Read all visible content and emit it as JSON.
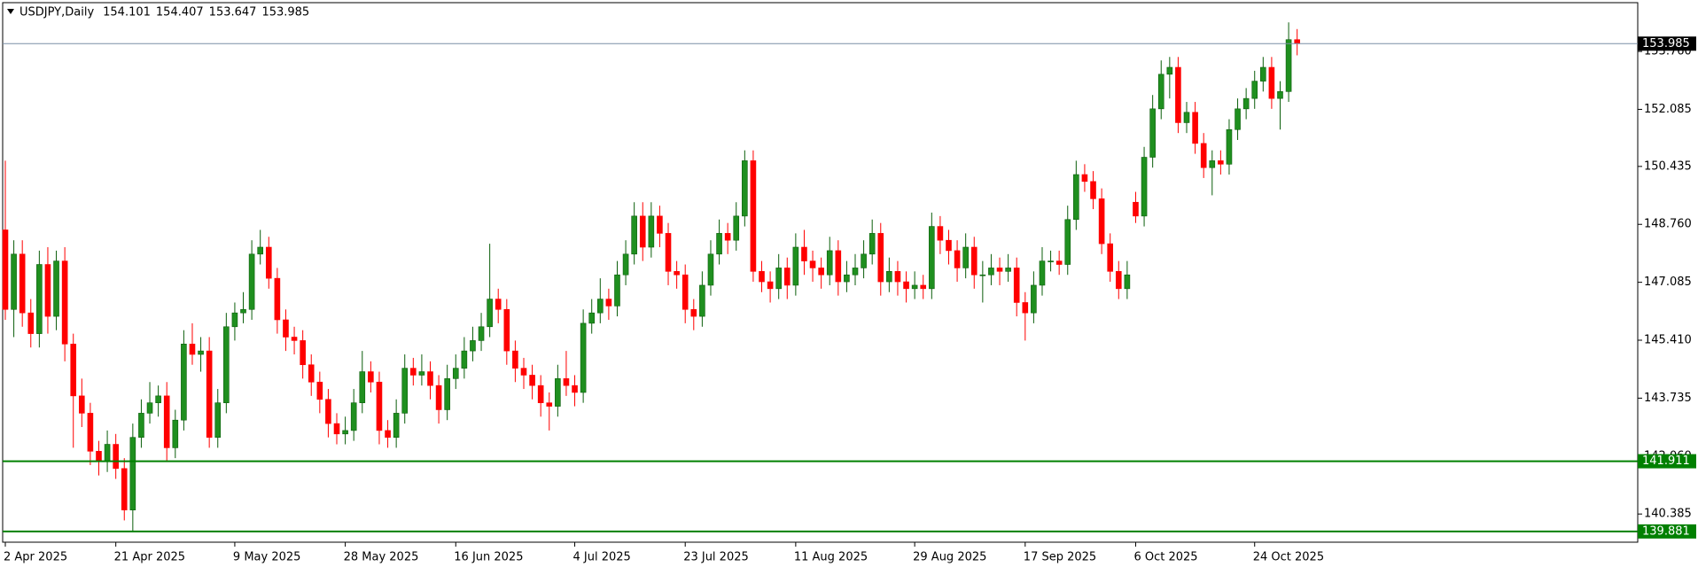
{
  "chart_data": {
    "type": "candlestick",
    "title": "USDJPY,Daily",
    "categories": [
      "2 Apr 2025",
      null,
      null,
      null,
      null,
      null,
      null,
      null,
      null,
      null,
      null,
      null,
      null,
      "21 Apr 2025",
      null,
      null,
      null,
      null,
      null,
      null,
      null,
      null,
      null,
      null,
      null,
      null,
      null,
      "9 May 2025",
      null,
      null,
      null,
      null,
      null,
      null,
      null,
      null,
      null,
      null,
      null,
      null,
      "28 May 2025",
      null,
      null,
      null,
      null,
      null,
      null,
      null,
      null,
      null,
      null,
      null,
      null,
      "16 Jun 2025",
      null,
      null,
      null,
      null,
      null,
      null,
      null,
      null,
      null,
      null,
      null,
      null,
      null,
      "4 Jul 2025",
      null,
      null,
      null,
      null,
      null,
      null,
      null,
      null,
      null,
      null,
      null,
      null,
      "23 Jul 2025",
      null,
      null,
      null,
      null,
      null,
      null,
      null,
      null,
      null,
      null,
      null,
      null,
      "11 Aug 2025",
      null,
      null,
      null,
      null,
      null,
      null,
      null,
      null,
      null,
      null,
      null,
      null,
      null,
      "29 Aug 2025",
      null,
      null,
      null,
      null,
      null,
      null,
      null,
      null,
      null,
      null,
      null,
      null,
      "17 Sep 2025",
      null,
      null,
      null,
      null,
      null,
      null,
      null,
      null,
      null,
      null,
      null,
      null,
      "6 Oct 2025",
      null,
      null,
      null,
      null,
      null,
      null,
      null,
      null,
      null,
      null,
      null,
      null,
      null,
      "24 Oct 2025",
      null,
      null,
      null,
      null,
      null
    ],
    "candles": [
      [
        148.6,
        150.6,
        146.0,
        146.3
      ],
      [
        146.3,
        148.3,
        145.5,
        147.9
      ],
      [
        147.9,
        148.3,
        145.8,
        146.2
      ],
      [
        146.2,
        146.6,
        145.2,
        145.6
      ],
      [
        145.6,
        148.0,
        145.2,
        147.6
      ],
      [
        147.6,
        148.1,
        145.6,
        146.1
      ],
      [
        146.1,
        148.0,
        145.7,
        147.7
      ],
      [
        147.7,
        148.1,
        144.8,
        145.3
      ],
      [
        145.3,
        145.6,
        142.3,
        143.8
      ],
      [
        143.8,
        144.3,
        142.9,
        143.3
      ],
      [
        143.3,
        143.6,
        141.8,
        142.2
      ],
      [
        142.2,
        142.5,
        141.5,
        141.9
      ],
      [
        141.9,
        142.8,
        141.6,
        142.4
      ],
      [
        142.4,
        142.7,
        141.4,
        141.7
      ],
      [
        141.7,
        142.0,
        140.2,
        140.5
      ],
      [
        140.5,
        143.0,
        139.9,
        142.6
      ],
      [
        142.6,
        143.7,
        142.3,
        143.3
      ],
      [
        143.3,
        144.2,
        143.0,
        143.6
      ],
      [
        143.6,
        144.1,
        143.2,
        143.8
      ],
      [
        143.8,
        144.2,
        141.9,
        142.3
      ],
      [
        142.3,
        143.4,
        142.0,
        143.1
      ],
      [
        143.1,
        145.7,
        142.8,
        145.3
      ],
      [
        145.3,
        145.9,
        144.7,
        145.0
      ],
      [
        145.0,
        145.5,
        144.5,
        145.1
      ],
      [
        145.1,
        145.5,
        142.3,
        142.6
      ],
      [
        142.6,
        144.0,
        142.3,
        143.6
      ],
      [
        143.6,
        146.2,
        143.3,
        145.8
      ],
      [
        145.8,
        146.5,
        145.4,
        146.2
      ],
      [
        146.2,
        146.8,
        145.9,
        146.3
      ],
      [
        146.3,
        148.3,
        146.0,
        147.9
      ],
      [
        147.9,
        148.6,
        147.6,
        148.1
      ],
      [
        148.1,
        148.4,
        146.9,
        147.2
      ],
      [
        147.2,
        147.5,
        145.6,
        146.0
      ],
      [
        146.0,
        146.3,
        145.1,
        145.5
      ],
      [
        145.5,
        145.8,
        145.0,
        145.4
      ],
      [
        145.4,
        145.7,
        144.3,
        144.7
      ],
      [
        144.7,
        145.0,
        143.8,
        144.2
      ],
      [
        144.2,
        144.5,
        143.3,
        143.7
      ],
      [
        143.7,
        144.0,
        142.6,
        143.0
      ],
      [
        143.0,
        143.3,
        142.4,
        142.7
      ],
      [
        142.7,
        143.2,
        142.4,
        142.8
      ],
      [
        142.8,
        144.0,
        142.5,
        143.6
      ],
      [
        143.6,
        145.1,
        143.3,
        144.5
      ],
      [
        144.5,
        144.8,
        143.9,
        144.2
      ],
      [
        144.2,
        144.5,
        142.4,
        142.8
      ],
      [
        142.8,
        143.1,
        142.3,
        142.6
      ],
      [
        142.6,
        143.7,
        142.3,
        143.3
      ],
      [
        143.3,
        145.0,
        143.0,
        144.6
      ],
      [
        144.6,
        144.9,
        144.1,
        144.4
      ],
      [
        144.4,
        145.0,
        144.1,
        144.5
      ],
      [
        144.5,
        144.8,
        143.7,
        144.1
      ],
      [
        144.1,
        144.4,
        143.0,
        143.4
      ],
      [
        143.4,
        144.7,
        143.1,
        144.3
      ],
      [
        144.3,
        145.0,
        144.0,
        144.6
      ],
      [
        144.6,
        145.5,
        144.3,
        145.1
      ],
      [
        145.1,
        145.8,
        144.8,
        145.4
      ],
      [
        145.4,
        146.2,
        145.1,
        145.8
      ],
      [
        145.8,
        148.2,
        145.5,
        146.6
      ],
      [
        146.6,
        146.9,
        145.9,
        146.3
      ],
      [
        146.3,
        146.6,
        144.7,
        145.1
      ],
      [
        145.1,
        145.4,
        144.2,
        144.6
      ],
      [
        144.6,
        144.9,
        144.0,
        144.4
      ],
      [
        144.4,
        144.7,
        143.7,
        144.1
      ],
      [
        144.1,
        144.4,
        143.2,
        143.6
      ],
      [
        143.6,
        143.9,
        142.8,
        143.5
      ],
      [
        143.5,
        144.7,
        143.2,
        144.3
      ],
      [
        144.3,
        145.1,
        143.8,
        144.1
      ],
      [
        144.1,
        144.4,
        143.5,
        143.9
      ],
      [
        143.9,
        146.3,
        143.6,
        145.9
      ],
      [
        145.9,
        146.6,
        145.6,
        146.2
      ],
      [
        146.2,
        147.2,
        145.9,
        146.6
      ],
      [
        146.6,
        146.9,
        146.0,
        146.4
      ],
      [
        146.4,
        147.7,
        146.1,
        147.3
      ],
      [
        147.3,
        148.3,
        147.0,
        147.9
      ],
      [
        147.9,
        149.4,
        147.6,
        149.0
      ],
      [
        149.0,
        149.4,
        147.7,
        148.1
      ],
      [
        148.1,
        149.4,
        147.8,
        149.0
      ],
      [
        149.0,
        149.3,
        148.1,
        148.5
      ],
      [
        148.5,
        148.8,
        147.0,
        147.4
      ],
      [
        147.4,
        147.7,
        146.9,
        147.3
      ],
      [
        147.3,
        147.6,
        145.9,
        146.3
      ],
      [
        146.3,
        146.6,
        145.7,
        146.1
      ],
      [
        146.1,
        147.4,
        145.8,
        147.0
      ],
      [
        147.0,
        148.3,
        146.7,
        147.9
      ],
      [
        147.9,
        148.9,
        147.6,
        148.5
      ],
      [
        148.5,
        148.8,
        147.9,
        148.3
      ],
      [
        148.3,
        149.4,
        148.0,
        149.0
      ],
      [
        149.0,
        150.9,
        148.7,
        150.6
      ],
      [
        150.6,
        150.9,
        147.1,
        147.4
      ],
      [
        147.4,
        147.7,
        146.8,
        147.1
      ],
      [
        147.1,
        147.4,
        146.5,
        146.9
      ],
      [
        146.9,
        147.9,
        146.6,
        147.5
      ],
      [
        147.5,
        147.8,
        146.6,
        147.0
      ],
      [
        147.0,
        148.5,
        146.7,
        148.1
      ],
      [
        148.1,
        148.6,
        147.3,
        147.7
      ],
      [
        147.7,
        148.0,
        147.1,
        147.5
      ],
      [
        147.5,
        147.8,
        146.9,
        147.3
      ],
      [
        147.3,
        148.4,
        147.0,
        148.0
      ],
      [
        148.0,
        148.3,
        146.7,
        147.1
      ],
      [
        147.1,
        147.7,
        146.8,
        147.3
      ],
      [
        147.3,
        147.9,
        147.0,
        147.5
      ],
      [
        147.5,
        148.3,
        147.2,
        147.9
      ],
      [
        147.9,
        148.9,
        147.6,
        148.5
      ],
      [
        148.5,
        148.8,
        146.7,
        147.1
      ],
      [
        147.1,
        147.8,
        146.8,
        147.4
      ],
      [
        147.4,
        147.7,
        146.7,
        147.1
      ],
      [
        147.1,
        147.4,
        146.5,
        146.9
      ],
      [
        146.9,
        147.4,
        146.6,
        147.0
      ],
      [
        147.0,
        147.3,
        146.6,
        146.9
      ],
      [
        146.9,
        149.1,
        146.6,
        148.7
      ],
      [
        148.7,
        149.0,
        147.9,
        148.3
      ],
      [
        148.3,
        148.6,
        147.6,
        148.0
      ],
      [
        148.0,
        148.3,
        147.1,
        147.5
      ],
      [
        147.5,
        148.5,
        147.2,
        148.1
      ],
      [
        148.1,
        148.4,
        146.9,
        147.3
      ],
      [
        147.3,
        147.7,
        146.5,
        147.3
      ],
      [
        147.3,
        147.9,
        147.0,
        147.5
      ],
      [
        147.5,
        147.8,
        147.0,
        147.4
      ],
      [
        147.4,
        147.9,
        147.1,
        147.5
      ],
      [
        147.5,
        147.8,
        146.1,
        146.5
      ],
      [
        146.5,
        146.8,
        145.4,
        146.2
      ],
      [
        146.2,
        147.4,
        145.9,
        147.0
      ],
      [
        147.0,
        148.1,
        146.7,
        147.7
      ],
      [
        147.7,
        148.0,
        147.4,
        147.7
      ],
      [
        147.7,
        148.0,
        147.3,
        147.6
      ],
      [
        147.6,
        149.3,
        147.3,
        148.9
      ],
      [
        148.9,
        150.6,
        148.6,
        150.2
      ],
      [
        150.2,
        150.5,
        149.7,
        150.0
      ],
      [
        150.0,
        150.3,
        149.2,
        149.5
      ],
      [
        149.5,
        149.8,
        147.9,
        148.2
      ],
      [
        148.2,
        148.5,
        147.1,
        147.4
      ],
      [
        147.4,
        147.7,
        146.6,
        146.9
      ],
      [
        146.9,
        147.7,
        146.6,
        147.3
      ],
      [
        149.4,
        149.7,
        148.8,
        149.0
      ],
      [
        149.0,
        151.0,
        148.7,
        150.7
      ],
      [
        150.7,
        152.5,
        150.4,
        152.1
      ],
      [
        152.1,
        153.5,
        151.8,
        153.1
      ],
      [
        153.1,
        153.6,
        152.4,
        153.3
      ],
      [
        153.3,
        153.6,
        151.4,
        151.7
      ],
      [
        151.7,
        152.3,
        151.4,
        152.0
      ],
      [
        152.0,
        152.3,
        150.8,
        151.1
      ],
      [
        151.1,
        151.4,
        150.1,
        150.4
      ],
      [
        150.4,
        150.9,
        149.6,
        150.6
      ],
      [
        150.6,
        150.9,
        150.2,
        150.5
      ],
      [
        150.5,
        151.8,
        150.2,
        151.5
      ],
      [
        151.5,
        152.4,
        151.2,
        152.1
      ],
      [
        152.1,
        152.7,
        151.8,
        152.4
      ],
      [
        152.4,
        153.2,
        152.1,
        152.9
      ],
      [
        152.9,
        153.6,
        152.6,
        153.3
      ],
      [
        153.3,
        153.6,
        152.1,
        152.4
      ],
      [
        152.4,
        152.9,
        151.5,
        152.6
      ],
      [
        152.6,
        154.6,
        152.3,
        154.101
      ],
      [
        154.101,
        154.407,
        153.647,
        153.985
      ]
    ],
    "up_color": "#1f8f1f",
    "down_color": "#ff0000",
    "ylim": [
      139.57,
      155.17
    ],
    "yticks": [
      {
        "value": 153.76,
        "label": "153.760"
      },
      152.085,
      150.435,
      {
        "value": 148.76,
        "label": "148.760"
      },
      147.085,
      {
        "value": 145.41,
        "label": "145.410"
      },
      143.735,
      {
        "value": 142.06,
        "label": "142.060"
      },
      140.385
    ],
    "levels": [
      {
        "value": 141.911,
        "color": "#008000"
      },
      {
        "value": 139.881,
        "color": "#008000"
      }
    ]
  }
}
